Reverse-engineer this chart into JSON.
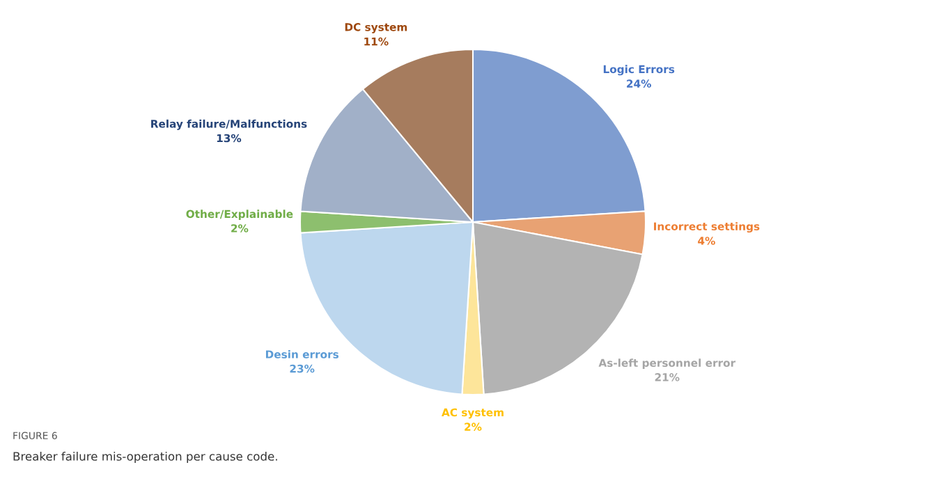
{
  "chart_data": {
    "type": "pie",
    "categories": [
      "Logic Errors",
      "Incorrect settings",
      "As-left personnel error",
      "AC system",
      "Desin errors",
      "Other/Explainable",
      "Relay failure/Malfunctions",
      "DC system"
    ],
    "values": [
      24,
      4,
      21,
      2,
      23,
      2,
      13,
      11
    ],
    "value_labels": [
      "24%",
      "4%",
      "21%",
      "2%",
      "23%",
      "2%",
      "13%",
      "11%"
    ],
    "colors": [
      "#7f9dd0",
      "#e8a273",
      "#b3b3b3",
      "#fde59a",
      "#bdd7ee",
      "#8dbf6e",
      "#a1b0c8",
      "#a67c5e"
    ],
    "annotations": [
      "FIGURE 6",
      "Breaker failure mis-operation per cause code."
    ]
  }
}
